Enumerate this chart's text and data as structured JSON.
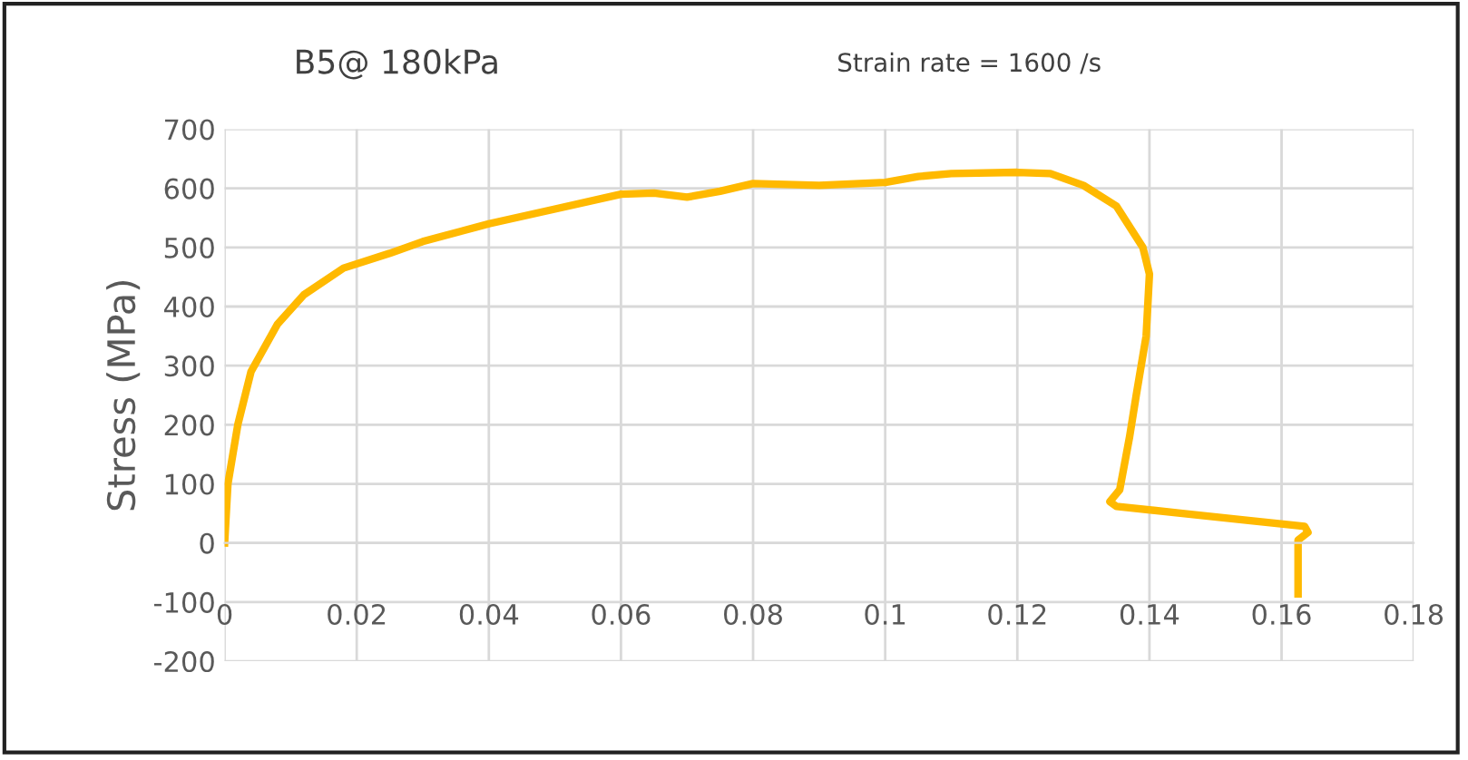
{
  "chart_data": {
    "type": "line",
    "title": "B5@ 180kPa",
    "ylabel": "Stress (MPa)",
    "annotations": [
      "Strain rate = 1600 /s"
    ],
    "series": [
      {
        "color": "#ffb900",
        "x": [
          0,
          0.0005,
          0.002,
          0.004,
          0.008,
          0.012,
          0.018,
          0.025,
          0.03,
          0.04,
          0.05,
          0.06,
          0.065,
          0.07,
          0.075,
          0.08,
          0.09,
          0.1,
          0.105,
          0.11,
          0.12,
          0.125,
          0.13,
          0.135,
          0.139,
          0.14,
          0.1395,
          0.138,
          0.137,
          0.136,
          0.1355,
          0.134,
          0.135,
          0.145,
          0.155,
          0.1635,
          0.164,
          0.1625,
          0.1625
        ],
        "values": [
          0,
          100,
          200,
          290,
          370,
          420,
          465,
          490,
          510,
          540,
          565,
          590,
          592,
          585,
          595,
          608,
          605,
          610,
          620,
          625,
          627,
          625,
          605,
          570,
          500,
          455,
          350,
          250,
          180,
          120,
          90,
          70,
          62,
          50,
          38,
          28,
          18,
          5,
          -86
        ]
      }
    ],
    "xlim": [
      0,
      0.18
    ],
    "xticks": [
      0,
      0.02,
      0.04,
      0.06,
      0.08,
      {
        "value": 0.1,
        "label": "0.1"
      },
      0.12,
      0.14,
      0.16,
      0.18
    ],
    "ylim": [
      -200,
      700
    ],
    "yticks": [
      -200,
      -100,
      0,
      100,
      200,
      300,
      400,
      500,
      600,
      700
    ],
    "grid": true,
    "marker": "none",
    "line_style": "solid"
  }
}
